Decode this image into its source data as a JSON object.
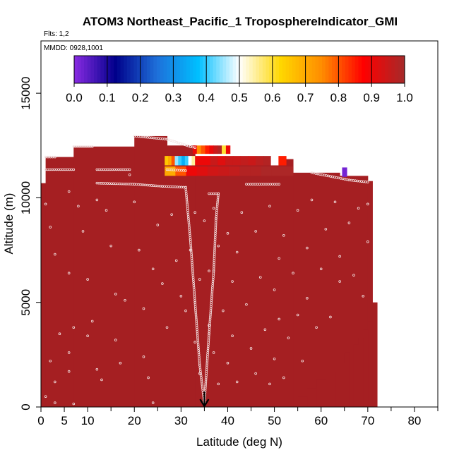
{
  "chart_data": {
    "type": "heatmap",
    "title": "ATOM3 Northeast_Pacific_1 TroposphereIndicator_GMI",
    "subtitle_flights": "Flts: 1,2",
    "subtitle_dates": "MMDD: 0928,1001",
    "xlabel": "Latitude (deg N)",
    "ylabel": "Altitude (m)",
    "xlim": [
      0,
      85
    ],
    "ylim": [
      0,
      17500
    ],
    "xticks": [
      0,
      5,
      10,
      20,
      30,
      40,
      50,
      60,
      70,
      80
    ],
    "yticks": [
      0,
      5000,
      10000,
      15000
    ],
    "ytick_labels": [
      "0",
      "5000",
      "10000",
      "15000"
    ],
    "colorbar": {
      "ticks": [
        "0.0",
        "0.1",
        "0.2",
        "0.3",
        "0.4",
        "0.5",
        "0.6",
        "0.7",
        "0.8",
        "0.9",
        "1.0"
      ],
      "colors": [
        "#8a2be2",
        "#00008b",
        "#1e6fd9",
        "#00bfff",
        "#ffffff",
        "#ffd700",
        "#ff8c00",
        "#ff0000",
        "#a52a2a"
      ]
    },
    "marker_latitude": 35,
    "background_value": 1.0,
    "background_color": "#a51f22",
    "envelope": [
      {
        "lat0": 0,
        "lat1": 1,
        "top": 10700
      },
      {
        "lat0": 1,
        "lat1": 7,
        "top": 11950
      },
      {
        "lat0": 7,
        "lat1": 20,
        "top": 12450
      },
      {
        "lat0": 20,
        "lat1": 27,
        "top": 12950
      },
      {
        "lat0": 27,
        "lat1": 33,
        "top": 12500
      },
      {
        "lat0": 33,
        "lat1": 54,
        "top": 11850
      },
      {
        "lat0": 54,
        "lat1": 64,
        "top": 11200
      },
      {
        "lat0": 64,
        "lat1": 70,
        "top": 11050
      },
      {
        "lat0": 70,
        "lat1": 71,
        "top": 10800
      },
      {
        "lat0": 71,
        "lat1": 72,
        "top": 5000
      },
      {
        "lat0": 70,
        "lat1": 71,
        "top": 4100
      },
      {
        "lat0": 69,
        "lat1": 70,
        "top": 3700
      },
      {
        "lat0": 68,
        "lat1": 69,
        "top": 3300
      },
      {
        "lat0": 67,
        "lat1": 68,
        "top": 3000
      },
      {
        "lat0": 65,
        "lat1": 66,
        "top": 2600
      },
      {
        "lat0": 63,
        "lat1": 65,
        "top": 2100
      },
      {
        "lat0": 61,
        "lat1": 63,
        "top": 1700
      },
      {
        "lat0": 59,
        "lat1": 61,
        "top": 1300
      },
      {
        "lat0": 57,
        "lat1": 59,
        "top": 900
      },
      {
        "lat0": 55,
        "lat1": 57,
        "top": 500
      }
    ],
    "anomaly_strips": [
      {
        "lat0": 32.5,
        "lat1": 40.5,
        "alt0": 12100,
        "alt1": 12500,
        "values": [
          0.9,
          0.75,
          0.8,
          0.85,
          0.9,
          0.95,
          0.98,
          0.6,
          0.9
        ]
      },
      {
        "lat0": 26.5,
        "lat1": 33.0,
        "alt0": 11550,
        "alt1": 12000,
        "values": [
          0.65,
          0.7,
          0.8,
          0.45,
          0.4,
          0.35,
          0.4,
          0.5,
          0.55
        ]
      },
      {
        "lat0": 33.0,
        "lat1": 52.5,
        "alt0": 11550,
        "alt1": 12000,
        "values": [
          0.9,
          0.9,
          0.95,
          0.92,
          0.95,
          0.95,
          0.96,
          0.95,
          0.97,
          0.98,
          0.5,
          0.85
        ]
      },
      {
        "lat0": 26.5,
        "lat1": 54.0,
        "alt0": 11050,
        "alt1": 11500,
        "values": [
          0.7,
          0.8,
          0.9,
          0.92,
          0.94,
          0.95,
          0.96,
          0.98,
          0.98,
          0.99,
          0.99,
          0.99
        ]
      },
      {
        "lat0": 64.5,
        "lat1": 65.5,
        "alt0": 11000,
        "alt1": 11450,
        "values": [
          0.02
        ]
      }
    ],
    "flight_tracks": [
      {
        "points": [
          [
            1,
            11950
          ],
          [
            3,
            11950
          ]
        ]
      },
      {
        "points": [
          [
            1,
            11350
          ],
          [
            7,
            11350
          ]
        ]
      },
      {
        "points": [
          [
            7,
            12450
          ],
          [
            11,
            12450
          ]
        ]
      },
      {
        "points": [
          [
            12,
            11350
          ],
          [
            19,
            11350
          ]
        ]
      },
      {
        "points": [
          [
            20,
            12950
          ],
          [
            27,
            12800
          ],
          [
            32,
            12450
          ],
          [
            33,
            12400
          ]
        ]
      },
      {
        "points": [
          [
            12,
            10700
          ],
          [
            20,
            10650
          ],
          [
            26,
            10550
          ],
          [
            31,
            10500
          ]
        ]
      },
      {
        "points": [
          [
            27,
            11350
          ],
          [
            31,
            11300
          ]
        ]
      },
      {
        "points": [
          [
            36,
            10200
          ],
          [
            38,
            10200
          ]
        ]
      },
      {
        "points": [
          [
            44,
            10650
          ],
          [
            51,
            10650
          ]
        ]
      },
      {
        "points": [
          [
            58,
            11200
          ],
          [
            66,
            10850
          ],
          [
            70,
            10750
          ]
        ]
      },
      {
        "points": [
          [
            31,
            10500
          ],
          [
            32,
            8000
          ],
          [
            33,
            5000
          ],
          [
            34,
            2000
          ],
          [
            35,
            200
          ]
        ]
      },
      {
        "points": [
          [
            35,
            200
          ],
          [
            36,
            3500
          ],
          [
            37,
            6500
          ],
          [
            37.5,
            9000
          ],
          [
            38,
            10200
          ]
        ]
      }
    ],
    "scatter_samples": [
      [
        1,
        9700
      ],
      [
        2,
        8600
      ],
      [
        3,
        7300
      ],
      [
        4,
        3500
      ],
      [
        2,
        2200
      ],
      [
        3,
        1200
      ],
      [
        1,
        500
      ],
      [
        3,
        200
      ],
      [
        6,
        10300
      ],
      [
        6,
        6400
      ],
      [
        7,
        3800
      ],
      [
        6,
        2600
      ],
      [
        6,
        1700
      ],
      [
        7,
        150
      ],
      [
        8,
        9600
      ],
      [
        9,
        8400
      ],
      [
        10,
        6100
      ],
      [
        11,
        4100
      ],
      [
        10,
        3400
      ],
      [
        12,
        9900
      ],
      [
        12,
        1800
      ],
      [
        13,
        1300
      ],
      [
        14,
        9400
      ],
      [
        15,
        7700
      ],
      [
        16,
        5400
      ],
      [
        16,
        3200
      ],
      [
        17,
        2100
      ],
      [
        18,
        5100
      ],
      [
        19,
        11100
      ],
      [
        20,
        9800
      ],
      [
        21,
        7500
      ],
      [
        22,
        4700
      ],
      [
        22,
        2400
      ],
      [
        23,
        1400
      ],
      [
        24,
        6600
      ],
      [
        24,
        200
      ],
      [
        25,
        8700
      ],
      [
        26,
        5900
      ],
      [
        27,
        3800
      ],
      [
        28,
        9200
      ],
      [
        29,
        7000
      ],
      [
        30,
        5300
      ],
      [
        31,
        4600
      ],
      [
        32,
        7500
      ],
      [
        33,
        9300
      ],
      [
        33,
        3100
      ],
      [
        34,
        6100
      ],
      [
        34,
        1600
      ],
      [
        35,
        8900
      ],
      [
        36,
        6500
      ],
      [
        36,
        3900
      ],
      [
        37,
        9500
      ],
      [
        37,
        2600
      ],
      [
        38,
        7700
      ],
      [
        38,
        1100
      ],
      [
        39,
        4600
      ],
      [
        40,
        8300
      ],
      [
        40,
        2100
      ],
      [
        41,
        6000
      ],
      [
        41,
        3400
      ],
      [
        42,
        7400
      ],
      [
        42,
        1200
      ],
      [
        43,
        9300
      ],
      [
        44,
        4900
      ],
      [
        45,
        2800
      ],
      [
        46,
        8400
      ],
      [
        46,
        1600
      ],
      [
        47,
        6200
      ],
      [
        48,
        3700
      ],
      [
        49,
        9600
      ],
      [
        49,
        1100
      ],
      [
        50,
        5600
      ],
      [
        50,
        2300
      ],
      [
        51,
        7100
      ],
      [
        51,
        4200
      ],
      [
        52,
        8200
      ],
      [
        52,
        1400
      ],
      [
        53,
        3300
      ],
      [
        54,
        6400
      ],
      [
        55,
        9400
      ],
      [
        55,
        4400
      ],
      [
        56,
        2200
      ],
      [
        57,
        7600
      ],
      [
        57,
        5200
      ],
      [
        58,
        9900
      ],
      [
        59,
        3800
      ],
      [
        60,
        6600
      ],
      [
        61,
        8500
      ],
      [
        62,
        4300
      ],
      [
        63,
        9800
      ],
      [
        64,
        7200
      ],
      [
        64,
        6000
      ],
      [
        66,
        8800
      ],
      [
        67,
        6300
      ],
      [
        68,
        9500
      ],
      [
        69,
        5300
      ],
      [
        70,
        7900
      ],
      [
        70,
        9700
      ]
    ]
  }
}
